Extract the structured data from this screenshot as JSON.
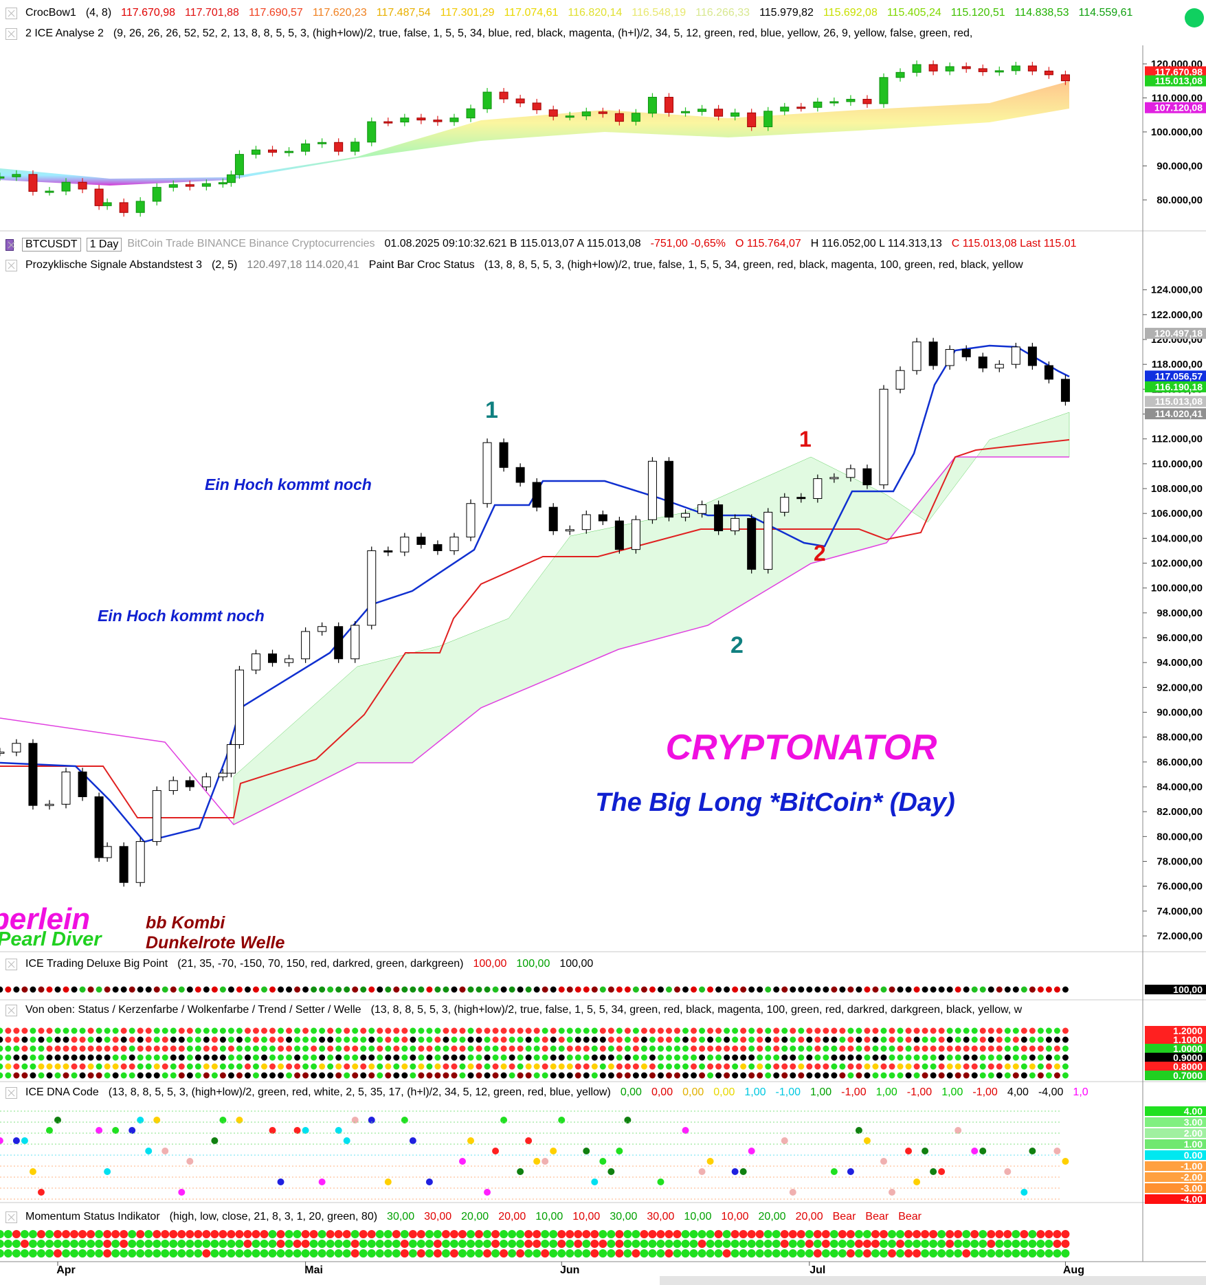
{
  "headers": [
    {
      "segments": [
        {
          "text": "CrocBow1",
          "color": "#000000"
        },
        {
          "text": "(4,  8)",
          "color": "#000000"
        },
        {
          "text": "117.670,98",
          "color": "#e00000"
        },
        {
          "text": "117.701,88",
          "color": "#e01010"
        },
        {
          "text": "117.690,57",
          "color": "#f04020"
        },
        {
          "text": "117.620,23",
          "color": "#f08020"
        },
        {
          "text": "117.487,54",
          "color": "#e8b000"
        },
        {
          "text": "117.301,29",
          "color": "#f0c800"
        },
        {
          "text": "117.074,61",
          "color": "#e8d800"
        },
        {
          "text": "116.820,14",
          "color": "#e0e030"
        },
        {
          "text": "116.548,19",
          "color": "#e8e870"
        },
        {
          "text": "116.266,33",
          "color": "#d8e890"
        },
        {
          "text": "115.979,82",
          "color": "#000000"
        },
        {
          "text": "115.692,08",
          "color": "#c8e000"
        },
        {
          "text": "115.405,24",
          "color": "#80d800"
        },
        {
          "text": "115.120,51",
          "color": "#40c000"
        },
        {
          "text": "114.838,53",
          "color": "#20b000"
        },
        {
          "text": "114.559,61",
          "color": "#10a010"
        },
        {
          "text": "114",
          "color": "#10a010"
        }
      ]
    },
    {
      "segments": [
        {
          "text": "2 ICE Analyse 2",
          "color": "#000000"
        },
        {
          "text": "(9,  26,  26,  26,  52,  52,  2,  13,  8,  8,  5,  5,  3,  (high+low)/2,  true,  false,  1,  5,  5,  34,  blue,  red,  black,  magenta,  (h+l)/2,  34,  5,  12,  green,  red,  blue,  yellow,  26,  9,  yellow,  false,  green,  red,",
          "color": "#000000"
        }
      ]
    },
    {
      "segments": [
        {
          "text": "BTCUSDT",
          "color": "#000000"
        },
        {
          "text": "1 Day",
          "color": "#000000"
        },
        {
          "text": "BitCoin  Trade  BINANCE  Binance  Cryptocurrencies",
          "color": "#a0a0a0"
        },
        {
          "text": "01.08.2025  09:10:32.621  B 115.013,07  A 115.013,08",
          "color": "#000000"
        },
        {
          "text": "-751,00  -0,65%",
          "color": "#e00000"
        },
        {
          "text": "O 115.764,07",
          "color": "#e00000"
        },
        {
          "text": "H 116.052,00  L 114.313,13",
          "color": "#000000"
        },
        {
          "text": "C 115.013,08  Last 115.01",
          "color": "#e00000"
        }
      ]
    },
    {
      "segments": [
        {
          "text": "Prozyklische Signale Abstandstest 3",
          "color": "#000000"
        },
        {
          "text": "(2,  5)",
          "color": "#000000"
        },
        {
          "text": "120.497,18  114.020,41",
          "color": "#808080"
        },
        {
          "text": "Paint Bar Croc Status",
          "color": "#000000"
        },
        {
          "text": "(13,  8,  8,  5,  5,  3,  (high+low)/2,  true,  false,  1,  5,  5,  34,  green,  red,  black,  magenta,  100,  green,  red,  black,  yellow",
          "color": "#000000"
        }
      ]
    },
    {
      "segments": [
        {
          "text": "ICE Trading Deluxe Big Point",
          "color": "#000000"
        },
        {
          "text": "(21,  35,  -70,  -150,  70,  150,  red,  darkred,  green,  darkgreen)",
          "color": "#000000"
        },
        {
          "text": "100,00",
          "color": "#e00000"
        },
        {
          "text": "100,00",
          "color": "#00a000"
        },
        {
          "text": "100,00",
          "color": "#000000"
        }
      ]
    },
    {
      "segments": [
        {
          "text": "Von oben: Status / Kerzenfarbe / Wolkenfarbe / Trend / Setter / Welle",
          "color": "#000000"
        },
        {
          "text": "(13,  8,  8,  5,  5,  3,  (high+low)/2,  true,  false,  1,  5,  5,  34,  green,  red,  black,  magenta,  100,  green,  red,  darkred,  darkgreen,  black,  yellow,  w",
          "color": "#000000"
        }
      ]
    },
    {
      "segments": [
        {
          "text": "ICE DNA Code",
          "color": "#000000"
        },
        {
          "text": "(13,  8,  8,  5,  5,  3,  (high+low)/2,  green,  red,  white,  2,  5,  35,  17,  (h+l)/2,  34,  5,  12,  green,  red,  blue,  yellow)",
          "color": "#000000"
        },
        {
          "text": "0,00",
          "color": "#00a000"
        },
        {
          "text": "0,00",
          "color": "#e00000"
        },
        {
          "text": "0,00",
          "color": "#e0b000"
        },
        {
          "text": "0,00",
          "color": "#e8d800"
        },
        {
          "text": "1,00",
          "color": "#00c8e0"
        },
        {
          "text": "-1,00",
          "color": "#00c8e0"
        },
        {
          "text": "1,00",
          "color": "#00a000"
        },
        {
          "text": "-1,00",
          "color": "#e00000"
        },
        {
          "text": "1,00",
          "color": "#00c000"
        },
        {
          "text": "-1,00",
          "color": "#e00000"
        },
        {
          "text": "1,00",
          "color": "#00c000"
        },
        {
          "text": "-1,00",
          "color": "#e00000"
        },
        {
          "text": "4,00",
          "color": "#000000"
        },
        {
          "text": "-4,00",
          "color": "#000000"
        },
        {
          "text": "1,0",
          "color": "#ff00ff"
        }
      ]
    },
    {
      "segments": [
        {
          "text": "Momentum Status Indikator",
          "color": "#000000"
        },
        {
          "text": "(high,  low,  close,  21,  8,  3,  1,  20,  green,  80)",
          "color": "#000000"
        },
        {
          "text": "30,00",
          "color": "#00a000"
        },
        {
          "text": "30,00",
          "color": "#e00000"
        },
        {
          "text": "20,00",
          "color": "#00a000"
        },
        {
          "text": "20,00",
          "color": "#e00000"
        },
        {
          "text": "10,00",
          "color": "#00a000"
        },
        {
          "text": "10,00",
          "color": "#e00000"
        },
        {
          "text": "30,00",
          "color": "#00a000"
        },
        {
          "text": "30,00",
          "color": "#e00000"
        },
        {
          "text": "10,00",
          "color": "#00a000"
        },
        {
          "text": "10,00",
          "color": "#e00000"
        },
        {
          "text": "20,00",
          "color": "#00a000"
        },
        {
          "text": "20,00",
          "color": "#e00000"
        },
        {
          "text": "Bear",
          "color": "#e00000"
        },
        {
          "text": "Bear",
          "color": "#e00000"
        },
        {
          "text": "Bear",
          "color": "#e00000"
        }
      ]
    }
  ],
  "chart_data": [
    {
      "type": "candlestick",
      "xlim": [
        -7.5,
        137.5
      ],
      "ylim": [
        71300,
        125450
      ],
      "yticks": [
        {
          "value": 80000,
          "label": "80.000,00"
        },
        {
          "value": 90000,
          "label": "90.000,00"
        },
        {
          "value": 100000,
          "label": "100.000,00"
        },
        {
          "value": 110000,
          "label": "110.000,00"
        },
        {
          "value": 120000,
          "label": "120.000,00"
        }
      ],
      "price_tags": [
        {
          "value": 117670.98,
          "label": "117.670,98",
          "color": "#ff2020"
        },
        {
          "value": 115013.08,
          "label": "115.013,08",
          "color": "#20d020"
        },
        {
          "value": 107120.08,
          "label": "107.120,08",
          "color": "#e020e0"
        }
      ],
      "x": [
        -7,
        -5,
        -3,
        -1,
        1,
        3,
        5,
        6,
        8,
        10,
        12,
        14,
        16,
        18,
        20,
        21,
        22,
        24,
        26,
        28,
        30,
        32,
        34,
        36,
        38,
        40,
        42,
        44,
        46,
        48,
        50,
        52,
        54,
        56,
        58,
        60,
        62,
        64,
        66,
        68,
        70,
        72,
        74,
        76,
        78,
        80,
        82,
        84,
        86,
        88,
        90,
        92,
        94,
        96,
        98,
        100,
        102,
        104,
        106,
        108,
        110,
        112,
        114,
        116,
        118,
        120,
        122
      ],
      "series": [
        {
          "values": [
            86800,
            87500,
            82500,
            82600,
            85200,
            83200,
            78300,
            79200,
            76300,
            79600,
            83700,
            84500,
            84000,
            84800,
            85100,
            87400,
            93400,
            94700,
            94000,
            94300,
            96500,
            96900,
            94300,
            97000,
            103000,
            102900,
            104100,
            103500,
            103000,
            104100,
            106800,
            111700,
            109700,
            108500,
            106500,
            104600,
            104700,
            105900,
            105400,
            103100,
            105500,
            110200,
            105700,
            106000,
            106700,
            104600,
            105600,
            101500,
            106100,
            107300,
            107200,
            108800,
            108900,
            109600,
            108300,
            116000,
            117500,
            119800,
            117900,
            119200,
            118600,
            117700,
            118000,
            119400,
            117900,
            116800,
            115013.08
          ],
          "up_color": "#20c020",
          "down_color": "#e02020"
        }
      ]
    },
    {
      "type": "candlestick",
      "xlim": [
        -7.5,
        137.5
      ],
      "ylim": [
        70840,
        125200
      ],
      "xticks": [
        {
          "value": 0,
          "label": "Apr"
        },
        {
          "value": 30,
          "label": "Mai"
        },
        {
          "value": 61,
          "label": "Jun"
        },
        {
          "value": 91,
          "label": "Jul"
        },
        {
          "value": 122,
          "label": "Aug"
        }
      ],
      "yticks": [
        {
          "value": 72000,
          "label": "72.000,00"
        },
        {
          "value": 74000,
          "label": "74.000,00"
        },
        {
          "value": 76000,
          "label": "76.000,00"
        },
        {
          "value": 78000,
          "label": "78.000,00"
        },
        {
          "value": 80000,
          "label": "80.000,00"
        },
        {
          "value": 82000,
          "label": "82.000,00"
        },
        {
          "value": 84000,
          "label": "84.000,00"
        },
        {
          "value": 86000,
          "label": "86.000,00"
        },
        {
          "value": 88000,
          "label": "88.000,00"
        },
        {
          "value": 90000,
          "label": "90.000,00"
        },
        {
          "value": 92000,
          "label": "92.000,00"
        },
        {
          "value": 94000,
          "label": "94.000,00"
        },
        {
          "value": 96000,
          "label": "96.000,00"
        },
        {
          "value": 98000,
          "label": "98.000,00"
        },
        {
          "value": 100000,
          "label": "100.000,00"
        },
        {
          "value": 102000,
          "label": "102.000,00"
        },
        {
          "value": 104000,
          "label": "104.000,00"
        },
        {
          "value": 106000,
          "label": "106.000,00"
        },
        {
          "value": 108000,
          "label": "108.000,00"
        },
        {
          "value": 110000,
          "label": "110.000,00"
        },
        {
          "value": 112000,
          "label": "112.000,00"
        },
        {
          "value": 114000,
          "label": "114.000,00"
        },
        {
          "value": 116000,
          "label": "116.000,00"
        },
        {
          "value": 118000,
          "label": "118.000,00"
        },
        {
          "value": 120000,
          "label": "120.000,00"
        },
        {
          "value": 122000,
          "label": "122.000,00"
        },
        {
          "value": 124000,
          "label": "124.000,00"
        }
      ],
      "price_tags": [
        {
          "value": 120497.18,
          "label": "120.497,18",
          "color": "#b0b0b0"
        },
        {
          "value": 117056.57,
          "label": "117.056,57",
          "color": "#1030e0"
        },
        {
          "value": 116190.18,
          "label": "116.190,18",
          "color": "#20d020"
        },
        {
          "value": 115013.08,
          "label": "115.013,08",
          "color": "#c0c0c0"
        },
        {
          "value": 114020.41,
          "label": "114.020,41",
          "color": "#909090"
        }
      ],
      "x": [
        -7,
        -5,
        -3,
        -1,
        1,
        3,
        5,
        6,
        8,
        10,
        12,
        14,
        16,
        18,
        20,
        21,
        22,
        24,
        26,
        28,
        30,
        32,
        34,
        36,
        38,
        40,
        42,
        44,
        46,
        48,
        50,
        52,
        54,
        56,
        58,
        60,
        62,
        64,
        66,
        68,
        70,
        72,
        74,
        76,
        78,
        80,
        82,
        84,
        86,
        88,
        90,
        92,
        94,
        96,
        98,
        100,
        102,
        104,
        106,
        108,
        110,
        112,
        114,
        116,
        118,
        120,
        122
      ],
      "series": [
        {
          "values": [
            86800,
            87500,
            82500,
            82600,
            85200,
            83200,
            78300,
            79200,
            76300,
            79600,
            83700,
            84500,
            84000,
            84800,
            85100,
            87400,
            93400,
            94700,
            94000,
            94300,
            96500,
            96900,
            94300,
            97000,
            103000,
            102900,
            104100,
            103500,
            103000,
            104100,
            106800,
            111700,
            109700,
            108500,
            106500,
            104600,
            104700,
            105900,
            105400,
            103100,
            105500,
            110200,
            105700,
            106000,
            106700,
            104600,
            105600,
            101500,
            106100,
            107300,
            107200,
            108800,
            108900,
            109600,
            108300,
            116000,
            117500,
            119800,
            117900,
            119200,
            118600,
            117700,
            118000,
            119400,
            117900,
            116800,
            115013.08
          ],
          "up_color": "#ffffff",
          "down_color": "#000000"
        }
      ]
    }
  ],
  "annotations": {
    "hoch_1": "Ein Hoch kommt noch",
    "hoch_2": "Ein Hoch kommt noch",
    "teal_1": "1",
    "red_1": "1",
    "red_2": "2",
    "teal_2": "2",
    "brand": "CRYPTONATOR",
    "subtitle": "The Big Long *BitCoin* (Day)",
    "bberlein": "bberlein",
    "pearl": "Pearl Diver",
    "kombi": "bb Kombi",
    "welle": "Dunkelrote Welle"
  },
  "panel_tags": {
    "big_point": [
      {
        "label": "100,00",
        "color": "#000000"
      }
    ],
    "von_oben": [
      {
        "label": "1.2000",
        "color": "#ff2020"
      },
      {
        "label": "1.1000",
        "color": "#ff2020"
      },
      {
        "label": "1.0000",
        "color": "#20d020"
      },
      {
        "label": "0.9000",
        "color": "#000000"
      },
      {
        "label": "0.8000",
        "color": "#ff2020"
      },
      {
        "label": "0.7000",
        "color": "#20d020"
      }
    ],
    "dna": [
      {
        "label": "4.00",
        "color": "#20e020"
      },
      {
        "label": "3.00",
        "color": "#80f080"
      },
      {
        "label": "2.00",
        "color": "#a0f0a0"
      },
      {
        "label": "1.00",
        "color": "#70e870"
      },
      {
        "label": "0.00",
        "color": "#00e8f0"
      },
      {
        "label": "-1.00",
        "color": "#ffa040"
      },
      {
        "label": "-2.00",
        "color": "#ffa040"
      },
      {
        "label": "-3.00",
        "color": "#ff9030"
      },
      {
        "label": "-4.00",
        "color": "#ff1010"
      }
    ]
  }
}
